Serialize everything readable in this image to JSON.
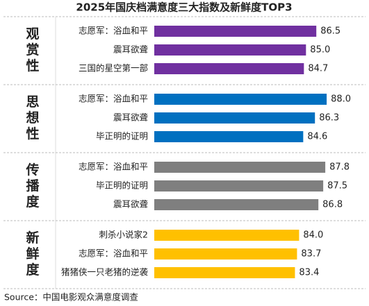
{
  "title": "2025年国庆档满意度三大指数及新鲜度TOP3",
  "source": "Source：中国电影观众满意度调查",
  "chart_data": [
    {
      "type": "bar",
      "title": "观赏性",
      "categories": [
        "志愿军：浴血和平",
        "震耳欲聋",
        "三国的星空第一部"
      ],
      "values": [
        86.5,
        85.0,
        84.7
      ],
      "value_labels": [
        "86.5",
        "85.0",
        "84.7"
      ],
      "color": "#7030a0",
      "xlim": [
        63,
        89
      ]
    },
    {
      "type": "bar",
      "title": "思想性",
      "categories": [
        "志愿军：浴血和平",
        "震耳欲聋",
        "毕正明的证明"
      ],
      "values": [
        88.0,
        86.3,
        84.6
      ],
      "value_labels": [
        "88.0",
        "86.3",
        "84.6"
      ],
      "color": "#0070c0",
      "xlim": [
        63,
        89
      ]
    },
    {
      "type": "bar",
      "title": "传播度",
      "categories": [
        "志愿军：浴血和平",
        "毕正明的证明",
        "震耳欲聋"
      ],
      "values": [
        87.8,
        87.5,
        86.8
      ],
      "value_labels": [
        "87.8",
        "87.5",
        "86.8"
      ],
      "color": "#7f7f7f",
      "xlim": [
        63,
        89
      ]
    },
    {
      "type": "bar",
      "title": "新鲜度",
      "categories": [
        "刺杀小说家2",
        "志愿军：浴血和平",
        "猪猪侠一只老猪的逆袭"
      ],
      "values": [
        84.0,
        83.7,
        83.4
      ],
      "value_labels": [
        "84.0",
        "83.7",
        "83.4"
      ],
      "color": "#ffc000",
      "xlim": [
        63,
        89
      ]
    }
  ]
}
